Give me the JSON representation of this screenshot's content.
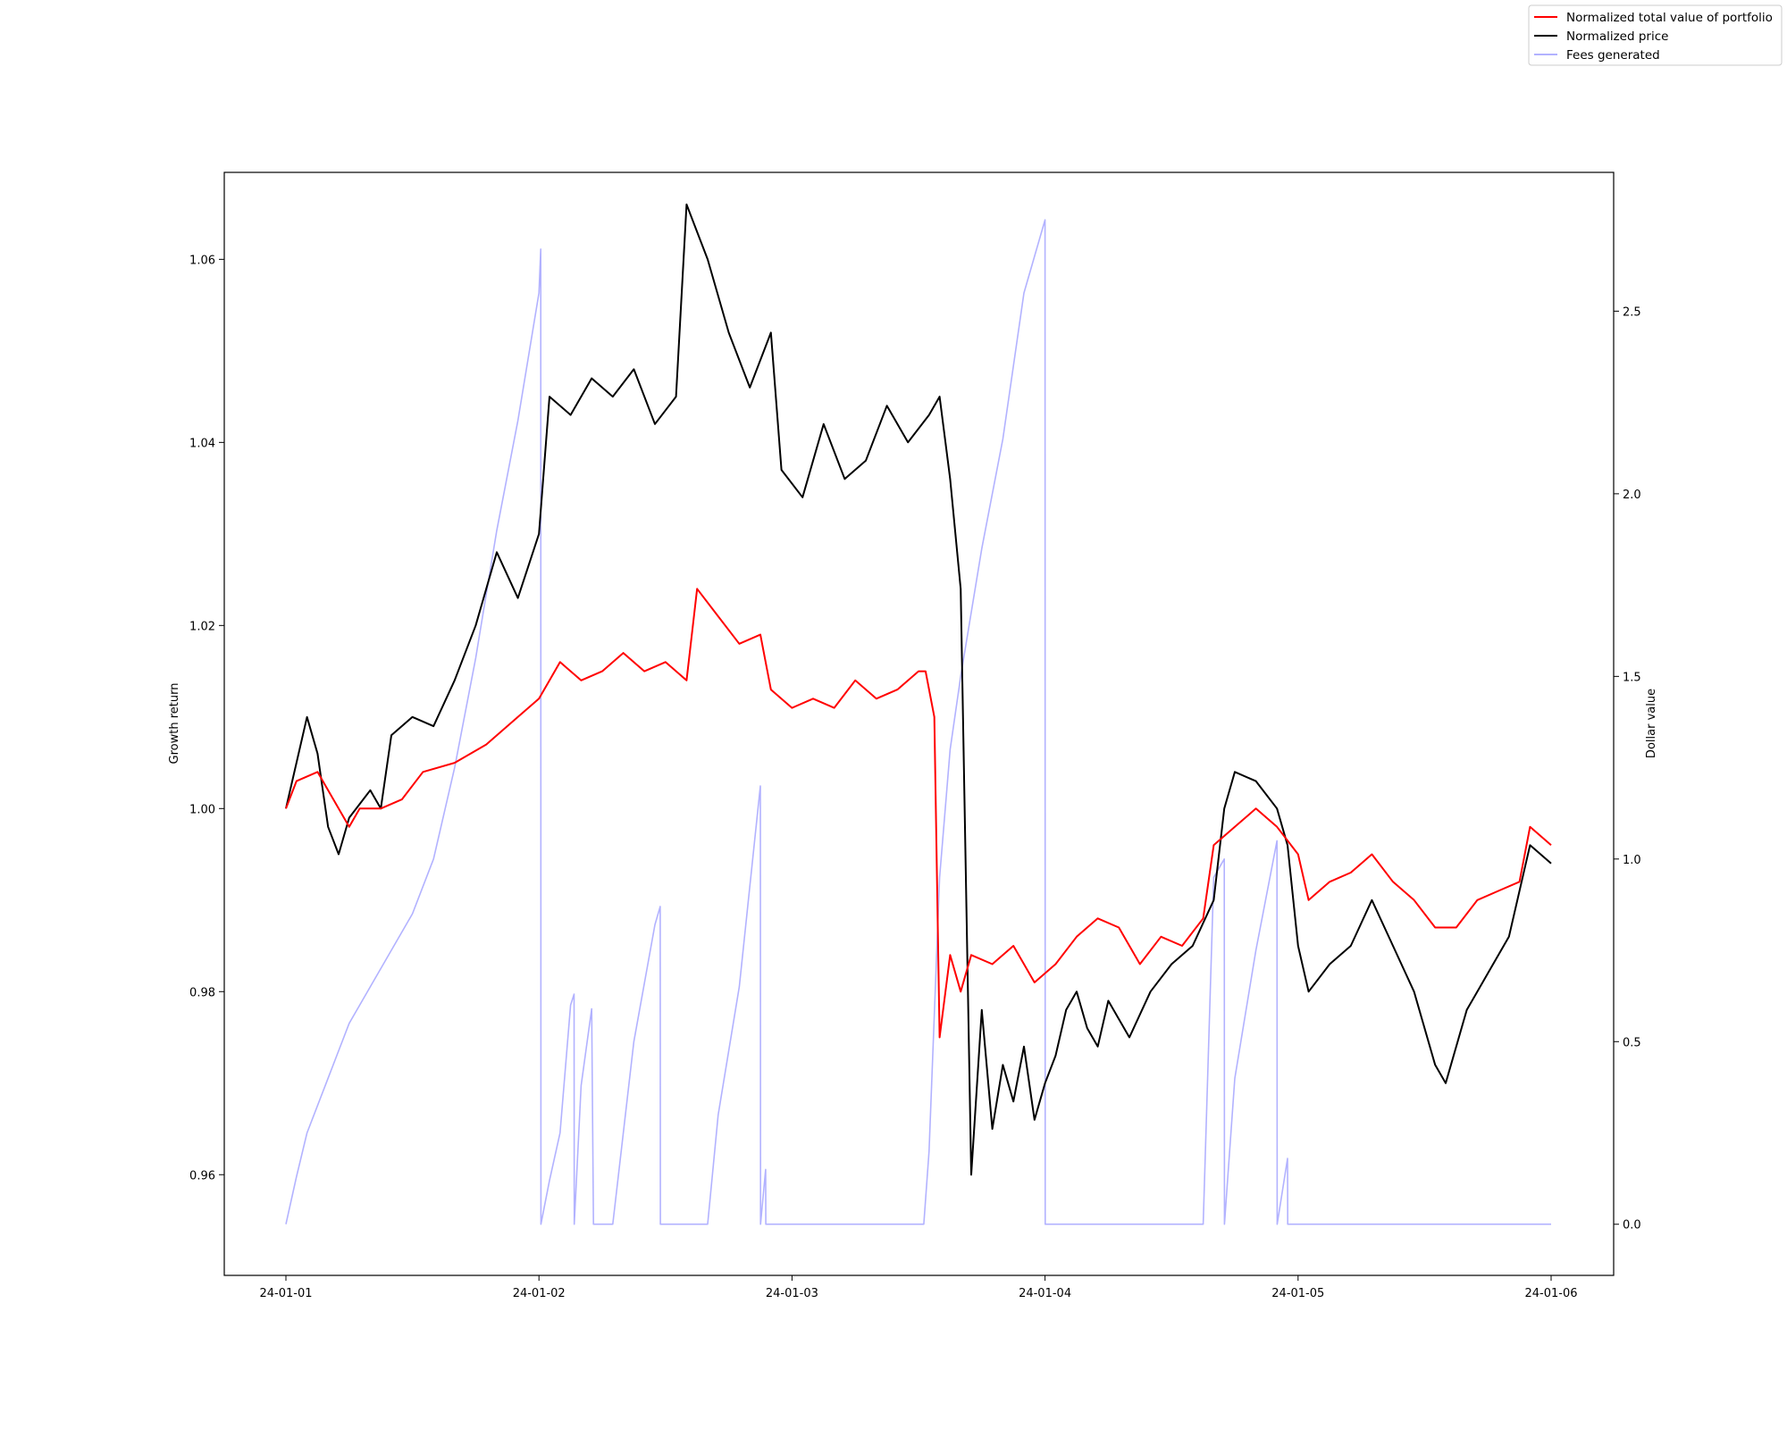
{
  "chart_data": {
    "type": "line",
    "ylabel": "Growth return",
    "y2label": "Dollar value",
    "xlim": [
      "2024-01-01",
      "2024-01-06"
    ],
    "ylim": [
      0.949,
      1.0695
    ],
    "y2lim": [
      -0.14,
      2.88
    ],
    "x_ticks": [
      {
        "date": "2024-01-01",
        "label": "24-01-01"
      },
      {
        "date": "2024-01-02",
        "label": "24-01-02"
      },
      {
        "date": "2024-01-03",
        "label": "24-01-03"
      },
      {
        "date": "2024-01-04",
        "label": "24-01-04"
      },
      {
        "date": "2024-01-05",
        "label": "24-01-05"
      },
      {
        "date": "2024-01-06",
        "label": "24-01-06"
      }
    ],
    "y_ticks": [
      {
        "value": 0.96,
        "label": "0.96"
      },
      {
        "value": 0.98,
        "label": "0.98"
      },
      {
        "value": 1.0,
        "label": "1.00"
      },
      {
        "value": 1.02,
        "label": "1.02"
      },
      {
        "value": 1.04,
        "label": "1.04"
      },
      {
        "value": 1.06,
        "label": "1.06"
      }
    ],
    "y2_ticks": [
      {
        "value": 0.0,
        "label": "0.0"
      },
      {
        "value": 0.5,
        "label": "0.5"
      },
      {
        "value": 1.0,
        "label": "1.0"
      },
      {
        "value": 1.5,
        "label": "1.5"
      },
      {
        "value": 2.0,
        "label": "2.0"
      },
      {
        "value": 2.5,
        "label": "2.5"
      }
    ],
    "legend_position": "top-right",
    "grid": false,
    "series": [
      {
        "name": "Normalized total value of portfolio",
        "color": "#ff0000",
        "axis": "left",
        "points": [
          [
            "2024-01-01 00:00",
            1.0
          ],
          [
            "2024-01-01 01:00",
            1.003
          ],
          [
            "2024-01-01 03:00",
            1.004
          ],
          [
            "2024-01-01 05:00",
            1.0
          ],
          [
            "2024-01-01 06:00",
            0.998
          ],
          [
            "2024-01-01 07:00",
            1.0
          ],
          [
            "2024-01-01 09:00",
            1.0
          ],
          [
            "2024-01-01 11:00",
            1.001
          ],
          [
            "2024-01-01 13:00",
            1.004
          ],
          [
            "2024-01-01 16:00",
            1.005
          ],
          [
            "2024-01-01 19:00",
            1.007
          ],
          [
            "2024-01-01 22:00",
            1.01
          ],
          [
            "2024-01-02 00:00",
            1.012
          ],
          [
            "2024-01-02 02:00",
            1.016
          ],
          [
            "2024-01-02 04:00",
            1.014
          ],
          [
            "2024-01-02 06:00",
            1.015
          ],
          [
            "2024-01-02 08:00",
            1.017
          ],
          [
            "2024-01-02 10:00",
            1.015
          ],
          [
            "2024-01-02 12:00",
            1.016
          ],
          [
            "2024-01-02 14:00",
            1.014
          ],
          [
            "2024-01-02 15:00",
            1.024
          ],
          [
            "2024-01-02 17:00",
            1.021
          ],
          [
            "2024-01-02 19:00",
            1.018
          ],
          [
            "2024-01-02 21:00",
            1.019
          ],
          [
            "2024-01-02 22:00",
            1.013
          ],
          [
            "2024-01-03 00:00",
            1.011
          ],
          [
            "2024-01-03 02:00",
            1.012
          ],
          [
            "2024-01-03 04:00",
            1.011
          ],
          [
            "2024-01-03 06:00",
            1.014
          ],
          [
            "2024-01-03 08:00",
            1.012
          ],
          [
            "2024-01-03 10:00",
            1.013
          ],
          [
            "2024-01-03 12:00",
            1.015
          ],
          [
            "2024-01-03 12:40",
            1.015
          ],
          [
            "2024-01-03 13:30",
            1.01
          ],
          [
            "2024-01-03 14:00",
            0.975
          ],
          [
            "2024-01-03 15:00",
            0.984
          ],
          [
            "2024-01-03 16:00",
            0.98
          ],
          [
            "2024-01-03 17:00",
            0.984
          ],
          [
            "2024-01-03 19:00",
            0.983
          ],
          [
            "2024-01-03 21:00",
            0.985
          ],
          [
            "2024-01-03 23:00",
            0.981
          ],
          [
            "2024-01-04 01:00",
            0.983
          ],
          [
            "2024-01-04 03:00",
            0.986
          ],
          [
            "2024-01-04 05:00",
            0.988
          ],
          [
            "2024-01-04 07:00",
            0.987
          ],
          [
            "2024-01-04 09:00",
            0.983
          ],
          [
            "2024-01-04 11:00",
            0.986
          ],
          [
            "2024-01-04 13:00",
            0.985
          ],
          [
            "2024-01-04 15:00",
            0.988
          ],
          [
            "2024-01-04 16:00",
            0.996
          ],
          [
            "2024-01-04 18:00",
            0.998
          ],
          [
            "2024-01-04 20:00",
            1.0
          ],
          [
            "2024-01-04 22:00",
            0.998
          ],
          [
            "2024-01-05 00:00",
            0.995
          ],
          [
            "2024-01-05 01:00",
            0.99
          ],
          [
            "2024-01-05 03:00",
            0.992
          ],
          [
            "2024-01-05 05:00",
            0.993
          ],
          [
            "2024-01-05 07:00",
            0.995
          ],
          [
            "2024-01-05 09:00",
            0.992
          ],
          [
            "2024-01-05 11:00",
            0.99
          ],
          [
            "2024-01-05 13:00",
            0.987
          ],
          [
            "2024-01-05 15:00",
            0.987
          ],
          [
            "2024-01-05 17:00",
            0.99
          ],
          [
            "2024-01-05 19:00",
            0.991
          ],
          [
            "2024-01-05 21:00",
            0.992
          ],
          [
            "2024-01-05 22:00",
            0.998
          ],
          [
            "2024-01-06 00:00",
            0.996
          ]
        ]
      },
      {
        "name": "Normalized price",
        "color": "#000000",
        "axis": "left",
        "points": [
          [
            "2024-01-01 00:00",
            1.0
          ],
          [
            "2024-01-01 01:00",
            1.005
          ],
          [
            "2024-01-01 02:00",
            1.01
          ],
          [
            "2024-01-01 03:00",
            1.006
          ],
          [
            "2024-01-01 04:00",
            0.998
          ],
          [
            "2024-01-01 05:00",
            0.995
          ],
          [
            "2024-01-01 06:00",
            0.999
          ],
          [
            "2024-01-01 08:00",
            1.002
          ],
          [
            "2024-01-01 09:00",
            1.0
          ],
          [
            "2024-01-01 10:00",
            1.008
          ],
          [
            "2024-01-01 12:00",
            1.01
          ],
          [
            "2024-01-01 14:00",
            1.009
          ],
          [
            "2024-01-01 16:00",
            1.014
          ],
          [
            "2024-01-01 18:00",
            1.02
          ],
          [
            "2024-01-01 20:00",
            1.028
          ],
          [
            "2024-01-01 22:00",
            1.023
          ],
          [
            "2024-01-02 00:00",
            1.03
          ],
          [
            "2024-01-02 01:00",
            1.045
          ],
          [
            "2024-01-02 03:00",
            1.043
          ],
          [
            "2024-01-02 05:00",
            1.047
          ],
          [
            "2024-01-02 07:00",
            1.045
          ],
          [
            "2024-01-02 09:00",
            1.048
          ],
          [
            "2024-01-02 11:00",
            1.042
          ],
          [
            "2024-01-02 13:00",
            1.045
          ],
          [
            "2024-01-02 14:00",
            1.066
          ],
          [
            "2024-01-02 16:00",
            1.06
          ],
          [
            "2024-01-02 18:00",
            1.052
          ],
          [
            "2024-01-02 20:00",
            1.046
          ],
          [
            "2024-01-02 22:00",
            1.052
          ],
          [
            "2024-01-02 23:00",
            1.037
          ],
          [
            "2024-01-03 01:00",
            1.034
          ],
          [
            "2024-01-03 03:00",
            1.042
          ],
          [
            "2024-01-03 05:00",
            1.036
          ],
          [
            "2024-01-03 07:00",
            1.038
          ],
          [
            "2024-01-03 09:00",
            1.044
          ],
          [
            "2024-01-03 11:00",
            1.04
          ],
          [
            "2024-01-03 13:00",
            1.043
          ],
          [
            "2024-01-03 14:00",
            1.045
          ],
          [
            "2024-01-03 15:00",
            1.036
          ],
          [
            "2024-01-03 16:00",
            1.024
          ],
          [
            "2024-01-03 17:00",
            0.96
          ],
          [
            "2024-01-03 18:00",
            0.978
          ],
          [
            "2024-01-03 19:00",
            0.965
          ],
          [
            "2024-01-03 20:00",
            0.972
          ],
          [
            "2024-01-03 21:00",
            0.968
          ],
          [
            "2024-01-03 22:00",
            0.974
          ],
          [
            "2024-01-03 23:00",
            0.966
          ],
          [
            "2024-01-04 00:00",
            0.97
          ],
          [
            "2024-01-04 01:00",
            0.973
          ],
          [
            "2024-01-04 02:00",
            0.978
          ],
          [
            "2024-01-04 03:00",
            0.98
          ],
          [
            "2024-01-04 04:00",
            0.976
          ],
          [
            "2024-01-04 05:00",
            0.974
          ],
          [
            "2024-01-04 06:00",
            0.979
          ],
          [
            "2024-01-04 08:00",
            0.975
          ],
          [
            "2024-01-04 10:00",
            0.98
          ],
          [
            "2024-01-04 12:00",
            0.983
          ],
          [
            "2024-01-04 14:00",
            0.985
          ],
          [
            "2024-01-04 16:00",
            0.99
          ],
          [
            "2024-01-04 17:00",
            1.0
          ],
          [
            "2024-01-04 18:00",
            1.004
          ],
          [
            "2024-01-04 20:00",
            1.003
          ],
          [
            "2024-01-04 22:00",
            1.0
          ],
          [
            "2024-01-04 23:00",
            0.996
          ],
          [
            "2024-01-05 00:00",
            0.985
          ],
          [
            "2024-01-05 01:00",
            0.98
          ],
          [
            "2024-01-05 03:00",
            0.983
          ],
          [
            "2024-01-05 05:00",
            0.985
          ],
          [
            "2024-01-05 07:00",
            0.99
          ],
          [
            "2024-01-05 09:00",
            0.985
          ],
          [
            "2024-01-05 11:00",
            0.98
          ],
          [
            "2024-01-05 13:00",
            0.972
          ],
          [
            "2024-01-05 14:00",
            0.97
          ],
          [
            "2024-01-05 16:00",
            0.978
          ],
          [
            "2024-01-05 18:00",
            0.982
          ],
          [
            "2024-01-05 20:00",
            0.986
          ],
          [
            "2024-01-05 22:00",
            0.996
          ],
          [
            "2024-01-06 00:00",
            0.994
          ]
        ]
      },
      {
        "name": "Fees generated",
        "color": "#0000ff",
        "opacity": 0.3,
        "axis": "right",
        "points": [
          [
            "2024-01-01 00:00",
            0.0
          ],
          [
            "2024-01-01 01:00",
            0.13
          ],
          [
            "2024-01-01 02:00",
            0.25
          ],
          [
            "2024-01-01 04:00",
            0.4
          ],
          [
            "2024-01-01 06:00",
            0.55
          ],
          [
            "2024-01-01 08:00",
            0.65
          ],
          [
            "2024-01-01 10:00",
            0.75
          ],
          [
            "2024-01-01 12:00",
            0.85
          ],
          [
            "2024-01-01 14:00",
            1.0
          ],
          [
            "2024-01-01 16:00",
            1.25
          ],
          [
            "2024-01-01 18:00",
            1.55
          ],
          [
            "2024-01-01 20:00",
            1.9
          ],
          [
            "2024-01-01 22:00",
            2.2
          ],
          [
            "2024-01-02 00:00",
            2.55
          ],
          [
            "2024-01-02 00:10",
            2.67
          ],
          [
            "2024-01-02 00:11",
            0.0
          ],
          [
            "2024-01-02 01:00",
            0.12
          ],
          [
            "2024-01-02 02:00",
            0.25
          ],
          [
            "2024-01-02 03:00",
            0.6
          ],
          [
            "2024-01-02 03:20",
            0.63
          ],
          [
            "2024-01-02 03:21",
            0.0
          ],
          [
            "2024-01-02 04:00",
            0.38
          ],
          [
            "2024-01-02 05:00",
            0.59
          ],
          [
            "2024-01-02 05:10",
            0.0
          ],
          [
            "2024-01-02 07:00",
            0.0
          ],
          [
            "2024-01-02 09:00",
            0.5
          ],
          [
            "2024-01-02 11:00",
            0.82
          ],
          [
            "2024-01-02 11:30",
            0.87
          ],
          [
            "2024-01-02 11:31",
            0.0
          ],
          [
            "2024-01-02 16:00",
            0.0
          ],
          [
            "2024-01-02 17:00",
            0.3
          ],
          [
            "2024-01-02 19:00",
            0.65
          ],
          [
            "2024-01-02 21:00",
            1.2
          ],
          [
            "2024-01-02 21:01",
            0.0
          ],
          [
            "2024-01-02 21:30",
            0.15
          ],
          [
            "2024-01-02 21:31",
            0.0
          ],
          [
            "2024-01-03 12:00",
            0.0
          ],
          [
            "2024-01-03 12:30",
            0.0
          ],
          [
            "2024-01-03 13:00",
            0.2
          ],
          [
            "2024-01-03 14:00",
            0.95
          ],
          [
            "2024-01-03 15:00",
            1.3
          ],
          [
            "2024-01-03 16:00",
            1.5
          ],
          [
            "2024-01-03 18:00",
            1.85
          ],
          [
            "2024-01-03 20:00",
            2.15
          ],
          [
            "2024-01-03 22:00",
            2.55
          ],
          [
            "2024-01-04 00:00",
            2.75
          ],
          [
            "2024-01-04 00:01",
            0.0
          ],
          [
            "2024-01-04 15:00",
            0.0
          ],
          [
            "2024-01-04 16:00",
            0.95
          ],
          [
            "2024-01-04 17:00",
            1.0
          ],
          [
            "2024-01-04 17:01",
            0.0
          ],
          [
            "2024-01-04 18:00",
            0.4
          ],
          [
            "2024-01-04 20:00",
            0.75
          ],
          [
            "2024-01-04 22:00",
            1.05
          ],
          [
            "2024-01-04 22:01",
            0.0
          ],
          [
            "2024-01-04 23:00",
            0.18
          ],
          [
            "2024-01-04 23:01",
            0.0
          ],
          [
            "2024-01-06 00:00",
            0.0
          ]
        ]
      }
    ]
  }
}
